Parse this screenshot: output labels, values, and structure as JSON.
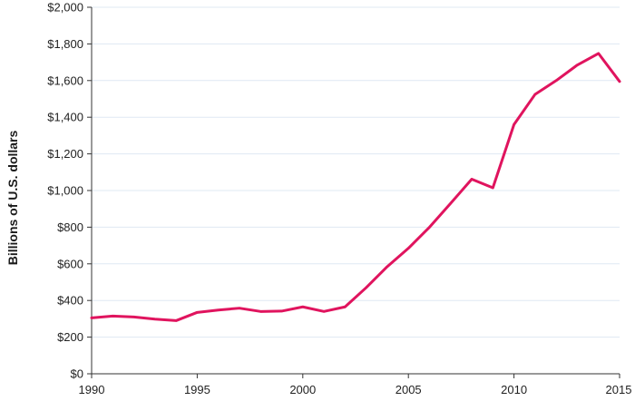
{
  "chart_data": {
    "type": "line",
    "title": "",
    "xlabel": "",
    "ylabel": "Billions of U.S. dollars",
    "x": [
      1990,
      1991,
      1992,
      1993,
      1994,
      1995,
      1996,
      1997,
      1998,
      1999,
      2000,
      2001,
      2002,
      2003,
      2004,
      2005,
      2006,
      2007,
      2008,
      2009,
      2010,
      2011,
      2012,
      2013,
      2014,
      2015
    ],
    "series": [
      {
        "values": [
          305,
          315,
          310,
          298,
          290,
          335,
          348,
          358,
          340,
          342,
          365,
          340,
          365,
          470,
          585,
          685,
          800,
          930,
          1062,
          1015,
          1360,
          1525,
          1600,
          1685,
          1748,
          1595
        ],
        "color": "#e0145e"
      }
    ],
    "xlim": [
      1990,
      2015
    ],
    "ylim": [
      0,
      2000
    ],
    "x_ticks": [
      1990,
      1995,
      2000,
      2005,
      2010,
      2015
    ],
    "x_tick_labels": [
      "1990",
      "1995",
      "2000",
      "2005",
      "2010",
      "2015"
    ],
    "y_ticks": [
      0,
      200,
      400,
      600,
      800,
      1000,
      1200,
      1400,
      1600,
      1800,
      2000
    ],
    "y_tick_labels": [
      "$0",
      "$200",
      "$400",
      "$600",
      "$800",
      "$1,000",
      "$1,200",
      "$1,400",
      "$1,600",
      "$1,800",
      "$2,000"
    ],
    "grid": true,
    "grid_color": "#dfe8f3",
    "legend": "none"
  }
}
